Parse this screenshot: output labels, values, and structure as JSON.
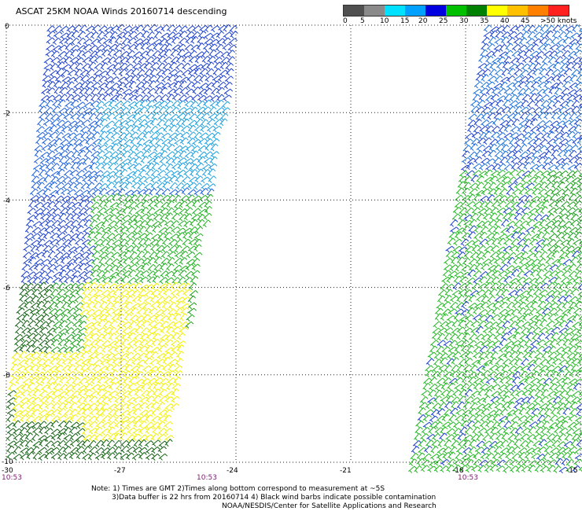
{
  "header": {
    "title": "ASCAT 25KM NOAA Winds 20160714 descending"
  },
  "colorbar": {
    "colors": [
      "#505050",
      "#8a8a8a",
      "#00e0ff",
      "#00a0ff",
      "#0000e0",
      "#00c000",
      "#008000",
      "#ffff00",
      "#ffc000",
      "#ff8000",
      "#ff2020",
      "#c00000",
      "#804020",
      "#c08060",
      "#ff00ff",
      "#c000c0",
      "#800080",
      "#300030"
    ],
    "labels": [
      "0",
      "5",
      "10",
      "15",
      "20",
      "25",
      "30",
      "35",
      "40",
      "45",
      ">50 knots"
    ]
  },
  "map": {
    "x_ticks": [
      "-30",
      "-27",
      "-24",
      "-21",
      "-18",
      "-15"
    ],
    "y_ticks": [
      "0",
      "-2",
      "-4",
      "-6",
      "-8",
      "-10"
    ],
    "times": [
      "10:53",
      "10:53",
      "10:53"
    ]
  },
  "notes": {
    "line1": "Note: 1) Times are GMT 2)Times along bottom correspond to measurement at ~5S",
    "line2": "3)Data buffer is 22 hrs from 20160714 4) Black wind barbs indicate possible contamination",
    "line3": "NOAA/NESDIS/Center for Satellite Applications and Research"
  }
}
